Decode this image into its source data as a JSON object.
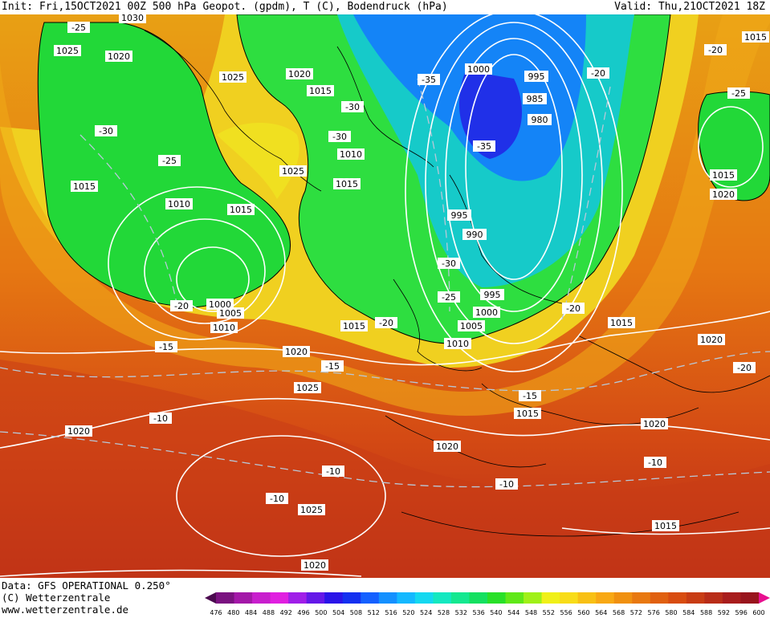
{
  "header": {
    "left": "Init: Fri,15OCT2021 00Z   500 hPa Geopot. (gpdm), T (C), Bodendruck (hPa)",
    "right": "Valid: Thu,21OCT2021 18Z"
  },
  "footer": {
    "data": "Data: GFS OPERATIONAL 0.250°",
    "copyright": "(C) Wetterzentrale",
    "website": "www.wetterzentrale.de"
  },
  "colorbar": {
    "labels": [
      "476",
      "480",
      "484",
      "488",
      "492",
      "496",
      "500",
      "504",
      "508",
      "512",
      "516",
      "520",
      "524",
      "528",
      "532",
      "536",
      "540",
      "544",
      "548",
      "552",
      "556",
      "560",
      "564",
      "568",
      "572",
      "576",
      "580",
      "584",
      "588",
      "592",
      "596",
      "600"
    ],
    "colors": [
      "#4b0a4f",
      "#7a1280",
      "#a318a8",
      "#c81ecd",
      "#e01fe0",
      "#a01ee8",
      "#6418e8",
      "#2a14e8",
      "#1430f0",
      "#1460ff",
      "#1490ff",
      "#14b8ff",
      "#14d8f0",
      "#14e8c0",
      "#14e890",
      "#14e060",
      "#28e028",
      "#60e818",
      "#a0f018",
      "#f0f018",
      "#f8dc18",
      "#f8c014",
      "#f8a814",
      "#f09010",
      "#e87810",
      "#e06010",
      "#d84c10",
      "#c83c14",
      "#b82c18",
      "#a81c1c",
      "#98141c",
      "#e81090"
    ]
  },
  "pressure_labels": [
    "1030",
    "1025",
    "1020",
    "1025",
    "1020",
    "1015",
    "1000",
    "995",
    "985",
    "980",
    "1010",
    "1025",
    "1015",
    "1015",
    "1010",
    "995",
    "990",
    "995",
    "1000",
    "1005",
    "1010",
    "1015",
    "1000",
    "1005",
    "1010",
    "1020",
    "1025",
    "1020",
    "1015",
    "1020",
    "1025",
    "1020",
    "1015",
    "1020",
    "1015",
    "1015",
    "1020",
    "1015",
    "1020",
    "1015"
  ],
  "temperature_labels": [
    "-25",
    "-30",
    "-25",
    "-30",
    "-30",
    "-35",
    "-35",
    "-20",
    "-20",
    "-25",
    "-30",
    "-25",
    "-20",
    "-20",
    "-15",
    "-15",
    "-10",
    "-15",
    "-10",
    "-10",
    "-10",
    "-10",
    "-20",
    "-20"
  ]
}
